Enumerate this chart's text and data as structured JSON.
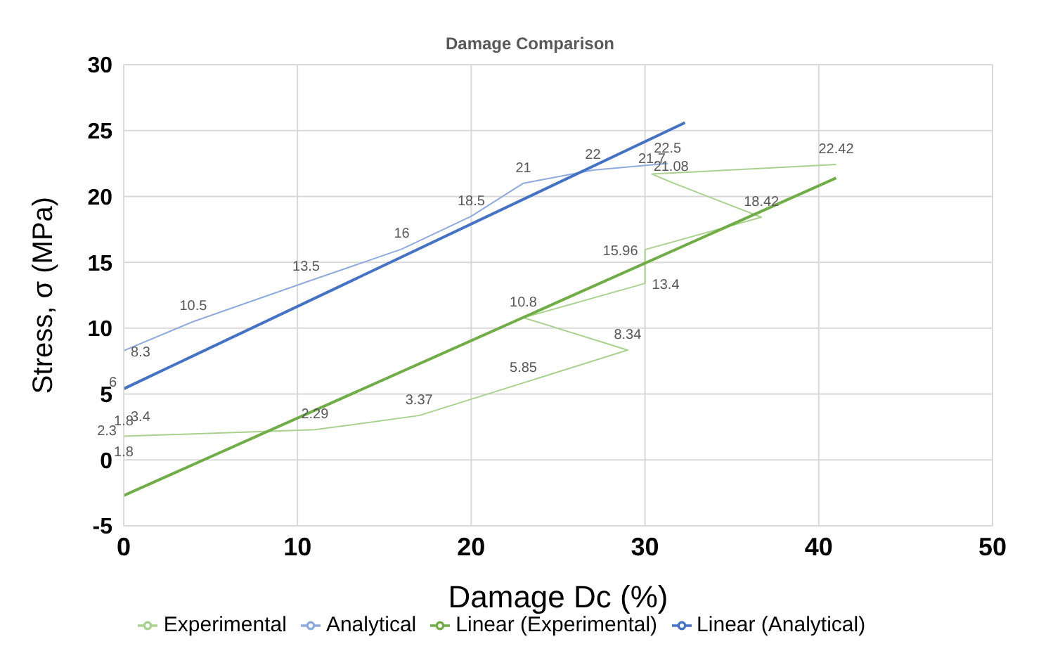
{
  "chart_data": {
    "type": "line",
    "title": "Damage Comparison",
    "xlabel": "Damage Dc (%)",
    "ylabel": "Stress, σ (MPa)",
    "xlim": [
      0,
      50
    ],
    "xticks": [
      0,
      10,
      20,
      30,
      40,
      50
    ],
    "ylim": [
      -5,
      30
    ],
    "yticks": [
      -5,
      0,
      5,
      10,
      15,
      20,
      25,
      30
    ],
    "grid": true,
    "legend": "bottom",
    "marker": "none",
    "line_style": "solid",
    "data_labels": true,
    "series": [
      {
        "name": "Experimental",
        "color": "#a9d18e",
        "x": [
          0,
          11,
          17,
          23,
          29,
          23,
          30,
          30,
          36.7,
          31.5,
          30.4,
          41
        ],
        "values": [
          1.8,
          2.29,
          3.37,
          5.85,
          8.34,
          10.8,
          13.4,
          15.96,
          18.42,
          21.08,
          21.7,
          22.42
        ]
      },
      {
        "name": "Analytical",
        "color": "#8faadc",
        "x": [
          0,
          0,
          0,
          0,
          0,
          4,
          10.5,
          16,
          20,
          23,
          27,
          31.3
        ],
        "values": [
          1.8,
          2.3,
          3.4,
          6,
          8.3,
          10.5,
          13.5,
          16,
          18.5,
          21,
          22,
          22.5
        ]
      },
      {
        "name": "Linear (Experimental)",
        "color": "#70ad47",
        "type": "line",
        "x": [
          0,
          41
        ],
        "values": [
          -2.7,
          21.4
        ],
        "value_labels": [
          null,
          null
        ]
      },
      {
        "name": "Linear (Analytical)",
        "color": "#4472c4",
        "type": "line",
        "x": [
          0,
          32.3
        ],
        "values": [
          5.4,
          25.6
        ],
        "value_labels": [
          null,
          null
        ]
      }
    ]
  }
}
